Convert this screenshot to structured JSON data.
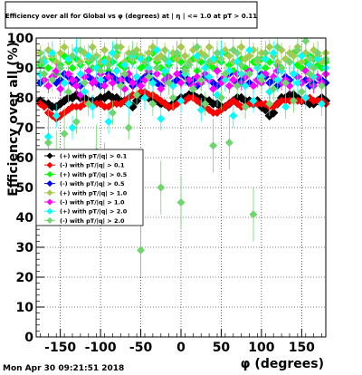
{
  "chart_data": {
    "type": "scatter",
    "title": "Efficiency over all for Global vs φ (degrees) at | η | <= 1.0 at pT > 0.11",
    "xlabel": "φ (degrees)",
    "ylabel": "Efficiency over all (%)",
    "xlim": [
      -180,
      180
    ],
    "ylim": [
      0,
      100
    ],
    "xticks": [
      -150,
      -100,
      -50,
      0,
      50,
      100,
      150
    ],
    "yticks": [
      0,
      10,
      20,
      30,
      40,
      50,
      60,
      70,
      80,
      90,
      100
    ],
    "grid": true,
    "legend_position": "middle-left",
    "timestamp": "Mon Apr 30 09:21:51 2018",
    "series": [
      {
        "name": "(+) with pT/|q| > 0.1",
        "color": "#000000",
        "marker": "diamond",
        "x_start": -175,
        "x_step": 5,
        "values": [
          79,
          78,
          78,
          77,
          77,
          78,
          79,
          80,
          80,
          81,
          80,
          80,
          79,
          79,
          79,
          80,
          80,
          81,
          80,
          80,
          79,
          79,
          78,
          77,
          79,
          81,
          81,
          80,
          80,
          79,
          78,
          78,
          77,
          78,
          79,
          80,
          80,
          81,
          81,
          80,
          80,
          79,
          79,
          78,
          78,
          77,
          77,
          78,
          79,
          80,
          80,
          79,
          79,
          78,
          79,
          77,
          76,
          74,
          75,
          78,
          80,
          80,
          81,
          81,
          80,
          79,
          79,
          78,
          78,
          79,
          80,
          79
        ]
      },
      {
        "name": "(-) with pT/|q| > 0.1",
        "color": "#ff0000",
        "marker": "diamond",
        "x_start": -175,
        "x_step": 5,
        "values": [
          78,
          77,
          75,
          74,
          73,
          74,
          75,
          76,
          77,
          77,
          77,
          78,
          78,
          78,
          78,
          78,
          77,
          77,
          78,
          78,
          78,
          79,
          80,
          81,
          81,
          82,
          82,
          81,
          81,
          80,
          79,
          78,
          77,
          77,
          78,
          79,
          79,
          80,
          80,
          79,
          78,
          77,
          76,
          75,
          75,
          76,
          77,
          78,
          79,
          78,
          77,
          77,
          78,
          78,
          78,
          78,
          78,
          77,
          77,
          78,
          79,
          79,
          79,
          79,
          79,
          79,
          80,
          80,
          79,
          79,
          79,
          78
        ]
      },
      {
        "name": "(+) with pT/|q| > 0.5",
        "color": "#00ff00",
        "marker": "diamond",
        "x_start": -175,
        "x_step": 5,
        "values": [
          91,
          92,
          90,
          93,
          88,
          91,
          94,
          92,
          90,
          93,
          91,
          95,
          92,
          90,
          94,
          91,
          93,
          89,
          92,
          95,
          91,
          90,
          93,
          92,
          94,
          90,
          91,
          93,
          95,
          92,
          90,
          88,
          91,
          93,
          94,
          92,
          90,
          91,
          93,
          89,
          92,
          94,
          91,
          90,
          93,
          92,
          95,
          91,
          89,
          92,
          93,
          90,
          94,
          92,
          91,
          93,
          90,
          92,
          94,
          91,
          90,
          93,
          92,
          95,
          91,
          90,
          92,
          94,
          93,
          91,
          90,
          92
        ]
      },
      {
        "name": "(-) with pT/|q| > 0.5",
        "color": "#0000ff",
        "marker": "diamond",
        "x_start": -175,
        "x_step": 5,
        "values": [
          85,
          86,
          84,
          87,
          85,
          86,
          88,
          87,
          85,
          86,
          84,
          85,
          87,
          86,
          85,
          84,
          86,
          88,
          87,
          86,
          85,
          87,
          86,
          84,
          85,
          86,
          87,
          88,
          86,
          85,
          84,
          86,
          87,
          85,
          86,
          88,
          87,
          85,
          86,
          84,
          85,
          87,
          86,
          85,
          84,
          86,
          87,
          88,
          86,
          85,
          86,
          87,
          85,
          84,
          86,
          88,
          87,
          85,
          86,
          84,
          85,
          87,
          86,
          88,
          87,
          85,
          86,
          84,
          85,
          87,
          86,
          85
        ]
      },
      {
        "name": "(+) with pT/|q| > 1.0",
        "color": "#a7c94e",
        "marker": "diamond",
        "x_start": -175,
        "x_step": 5,
        "values": [
          95,
          93,
          96,
          94,
          92,
          95,
          97,
          93,
          94,
          96,
          92,
          95,
          93,
          97,
          94,
          92,
          96,
          93,
          95,
          94,
          97,
          92,
          95,
          93,
          96,
          94,
          92,
          95,
          97,
          93,
          94,
          96,
          92,
          95,
          93,
          97,
          94,
          92,
          96,
          93,
          95,
          94,
          97,
          92,
          95,
          93,
          96,
          94,
          92,
          95,
          97,
          93,
          94,
          96,
          92,
          95,
          93,
          97,
          94,
          92,
          96,
          93,
          95,
          94,
          97,
          92,
          95,
          93,
          96,
          94,
          92,
          95
        ]
      },
      {
        "name": "(-) with pT/|q| > 1.0",
        "color": "#ff00ff",
        "marker": "diamond",
        "x_start": -175,
        "x_step": 5,
        "values": [
          88,
          86,
          84,
          87,
          89,
          83,
          85,
          88,
          86,
          84,
          81,
          87,
          89,
          85,
          86,
          88,
          84,
          87,
          85,
          89,
          86,
          83,
          88,
          85,
          87,
          84,
          86,
          89,
          85,
          88,
          83,
          86,
          87,
          84,
          88,
          85,
          89,
          86,
          84,
          87,
          85,
          88,
          86,
          83,
          89,
          85,
          87,
          84,
          86,
          88,
          85,
          87,
          89,
          84,
          86,
          85,
          88,
          82,
          87,
          89,
          85,
          86,
          84,
          88,
          87,
          85,
          89,
          86,
          84,
          87,
          85,
          88
        ]
      },
      {
        "name": "(+) with pT/|q| > 2.0",
        "color": "#00ffff",
        "marker": "diamond",
        "x_start": -175,
        "x_step": 5,
        "values": [
          88,
          92,
          67,
          95,
          74,
          90,
          85,
          93,
          70,
          96,
          88,
          82,
          94,
          77,
          90,
          86,
          92,
          72,
          95,
          89,
          84,
          91,
          78,
          94,
          87,
          93,
          80,
          90,
          85,
          96,
          73,
          89,
          92,
          84,
          95,
          79,
          88,
          91,
          83,
          94,
          76,
          90,
          87,
          93,
          81,
          95,
          86,
          89,
          74,
          92,
          88,
          84,
          96,
          79,
          90,
          87,
          93,
          82,
          95,
          86,
          89,
          77,
          92,
          88,
          85,
          94,
          80,
          91,
          87,
          93,
          78,
          90
        ]
      },
      {
        "name": "(-) with pT/|q| > 2.0",
        "color": "#6fd66f",
        "marker": "diamond",
        "x_start": -175,
        "x_step": 5,
        "values": [
          92,
          88,
          65,
          86,
          60,
          90,
          68,
          82,
          94,
          72,
          96,
          85,
          78,
          93,
          62,
          89,
          56,
          91,
          75,
          97,
          84,
          88,
          70,
          95,
          81,
          29,
          92,
          87,
          78,
          90,
          50,
          93,
          85,
          80,
          95,
          45,
          89,
          91,
          83,
          97,
          86,
          78,
          92,
          64,
          95,
          80,
          88,
          65,
          96,
          84,
          91,
          77,
          88,
          41,
          93,
          86,
          95,
          78,
          83,
          97,
          90,
          85,
          92,
          79,
          96,
          82,
          99,
          88,
          90,
          95,
          84,
          93
        ]
      }
    ]
  }
}
